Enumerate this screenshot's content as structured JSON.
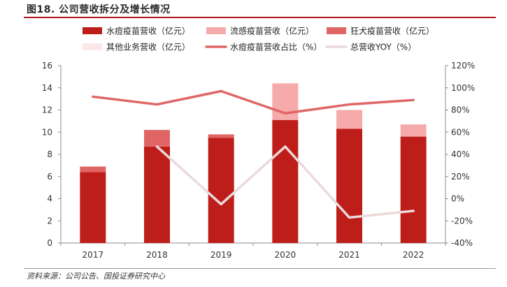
{
  "figure": {
    "title": "图18. 公司营收拆分及增长情况",
    "source": "资料来源：公司公告、国投证券研究中心"
  },
  "chart_data": {
    "type": "bar",
    "stacked": true,
    "categories": [
      "2017",
      "2018",
      "2019",
      "2020",
      "2021",
      "2022"
    ],
    "series": [
      {
        "name": "水痘疫苗营收（亿元）",
        "kind": "bar",
        "axis": "left",
        "color": "#be1e1a",
        "values": [
          6.4,
          8.7,
          9.5,
          11.1,
          10.3,
          9.6
        ]
      },
      {
        "name": "流感疫苗营收（亿元）",
        "kind": "bar",
        "axis": "left",
        "color": "#f6aaaa",
        "values": [
          0,
          0,
          0,
          3.3,
          1.7,
          1.1
        ]
      },
      {
        "name": "狂犬疫苗营收（亿元）",
        "kind": "bar",
        "axis": "left",
        "color": "#e06666",
        "values": [
          0.5,
          1.5,
          0.3,
          0,
          0,
          0
        ]
      },
      {
        "name": "其他业务营收（亿元）",
        "kind": "bar",
        "axis": "left",
        "color": "#fbe8e8",
        "values": [
          0,
          0,
          0,
          0,
          0,
          0
        ]
      },
      {
        "name": "水痘疫苗营收占比（%）",
        "kind": "line",
        "axis": "right",
        "color": "#e06666",
        "values": [
          92,
          85,
          97,
          77,
          85,
          89
        ]
      },
      {
        "name": "总营收YOY（%）",
        "kind": "line",
        "axis": "right",
        "color": "#ecdada",
        "values": [
          null,
          47,
          -5,
          47,
          -17,
          -11
        ]
      }
    ],
    "y_left": {
      "min": 0,
      "max": 16,
      "ticks": [
        "0",
        "2",
        "4",
        "6",
        "8",
        "10",
        "12",
        "14",
        "16"
      ]
    },
    "y_right": {
      "min": -40,
      "max": 120,
      "ticks": [
        "-40%",
        "-20%",
        "0%",
        "20%",
        "40%",
        "60%",
        "80%",
        "100%",
        "120%"
      ]
    },
    "legend_position": "top",
    "grid": false
  }
}
